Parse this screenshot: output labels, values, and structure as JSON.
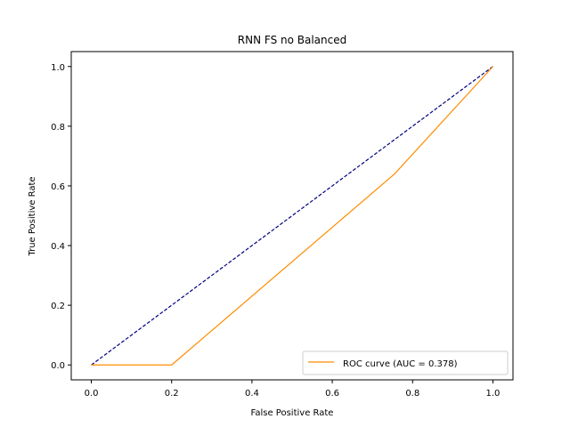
{
  "chart_data": {
    "type": "line",
    "title": "RNN FS no Balanced",
    "xlabel": "False Positive Rate",
    "ylabel": "True Positive Rate",
    "xlim": [
      -0.05,
      1.05
    ],
    "ylim": [
      -0.05,
      1.05
    ],
    "xticks": [
      0.0,
      0.2,
      0.4,
      0.6,
      0.8,
      1.0
    ],
    "yticks": [
      0.0,
      0.2,
      0.4,
      0.6,
      0.8,
      1.0
    ],
    "xtick_labels": [
      "0.0",
      "0.2",
      "0.4",
      "0.6",
      "0.8",
      "1.0"
    ],
    "ytick_labels": [
      "0.0",
      "0.2",
      "0.4",
      "0.6",
      "0.8",
      "1.0"
    ],
    "grid": false,
    "legend_position": "lower-right",
    "series": [
      {
        "name": "ROC curve (AUC = 0.378)",
        "color": "#ff8c00",
        "style": "solid",
        "x": [
          0.0,
          0.2,
          0.755,
          1.0
        ],
        "y": [
          0.0,
          0.0,
          0.64,
          1.0
        ]
      },
      {
        "color": "#000080",
        "style": "dashed",
        "x": [
          0.0,
          1.0
        ],
        "y": [
          0.0,
          1.0
        ]
      }
    ]
  }
}
